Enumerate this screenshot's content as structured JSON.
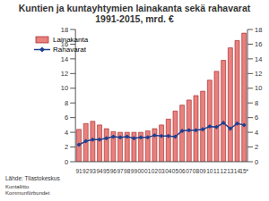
{
  "chart_data": {
    "type": "bar",
    "title": "Kuntien ja kuntayhtymien lainakanta sekä rahavarat\n1991-2015, mrd. €",
    "categories": [
      "91",
      "92",
      "93",
      "94",
      "95",
      "96",
      "97",
      "98",
      "99",
      "00",
      "01",
      "02",
      "03",
      "04",
      "05",
      "06",
      "07",
      "08",
      "09",
      "10",
      "11",
      "12",
      "13",
      "14",
      "15*"
    ],
    "series": [
      {
        "name": "Lainakanta",
        "type": "bar",
        "color": "#e8807e",
        "values": [
          4.4,
          5.2,
          5.5,
          5.0,
          4.5,
          4.1,
          4.0,
          4.0,
          4.0,
          4.0,
          4.2,
          4.5,
          5.0,
          5.8,
          6.9,
          7.7,
          8.4,
          9.0,
          9.6,
          11.1,
          12.3,
          13.8,
          15.5,
          16.5,
          17.5
        ]
      },
      {
        "name": "Rahavarat",
        "type": "line",
        "color": "#1f3f8f",
        "marker": "diamond",
        "values": [
          2.3,
          2.8,
          3.0,
          3.0,
          3.2,
          3.4,
          3.3,
          3.4,
          3.2,
          3.3,
          3.3,
          3.6,
          3.5,
          3.5,
          3.4,
          4.2,
          4.3,
          4.3,
          4.4,
          4.8,
          4.7,
          5.3,
          4.5,
          5.2,
          5.0
        ]
      }
    ],
    "ylim": [
      0,
      18
    ],
    "yticks": [
      0,
      2,
      4,
      6,
      8,
      10,
      12,
      14,
      16,
      18
    ],
    "y2lim": [
      0,
      18
    ],
    "y2ticks": [
      0,
      2,
      4,
      6,
      8,
      10,
      12,
      14,
      16,
      18
    ],
    "grid": false,
    "legend": "upper left",
    "source": "Lähde: Tilastokeskus",
    "footer": [
      "Kuntaliitto",
      "Kommunförbundet"
    ]
  }
}
